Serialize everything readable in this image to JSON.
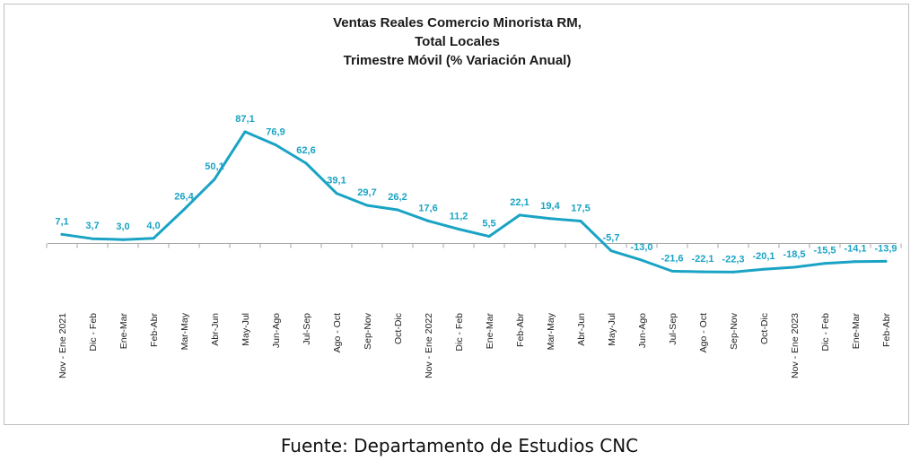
{
  "chart_data": {
    "type": "line",
    "title_lines": [
      "Ventas Reales Comercio Minorista RM,",
      "Total Locales",
      "Trimestre Móvil (% Variación Anual)"
    ],
    "categories": [
      "Nov - Ene 2021",
      "Dic - Feb",
      "Ene-Mar",
      "Feb-Abr",
      "Mar-May",
      "Abr-Jun",
      "May-Jul",
      "Jun-Ago",
      "Jul-Sep",
      "Ago - Oct",
      "Sep-Nov",
      "Oct-Dic",
      "Nov - Ene 2022",
      "Dic - Feb",
      "Ene-Mar",
      "Feb-Abr",
      "Mar-May",
      "Abr-Jun",
      "May-Jul",
      "Jun-Ago",
      "Jul-Sep",
      "Ago - Oct",
      "Sep-Nov",
      "Oct-Dic",
      "Nov - Ene 2023",
      "Dic - Feb",
      "Ene-Mar",
      "Feb-Abr"
    ],
    "data_labels": [
      "7,1",
      "3,7",
      "3,0",
      "4,0",
      "26,4",
      "50,1",
      "87,1",
      "76,9",
      "62,6",
      "39,1",
      "29,7",
      "26,2",
      "17,6",
      "11,2",
      "5,5",
      "22,1",
      "19,4",
      "17,5",
      "-5,7",
      "-13,0",
      "-21,6",
      "-22,1",
      "-22,3",
      "-20,1",
      "-18,5",
      "-15,5",
      "-14,1",
      "-13,9"
    ],
    "series": [
      {
        "values": [
          7.1,
          3.7,
          3.0,
          4.0,
          26.4,
          50.1,
          87.1,
          76.9,
          62.6,
          39.1,
          29.7,
          26.2,
          17.6,
          11.2,
          5.5,
          22.1,
          19.4,
          17.5,
          -5.7,
          -13.0,
          -21.6,
          -22.1,
          -22.3,
          -20.1,
          -18.5,
          -15.5,
          -14.1,
          -13.9
        ],
        "color": "#1aa3c4"
      }
    ],
    "label_color": "#1aa3c4",
    "axis_color": "#a6a6a6",
    "grid": false,
    "legend": "none"
  },
  "footer": {
    "source": "Fuente: Departamento de Estudios CNC"
  }
}
